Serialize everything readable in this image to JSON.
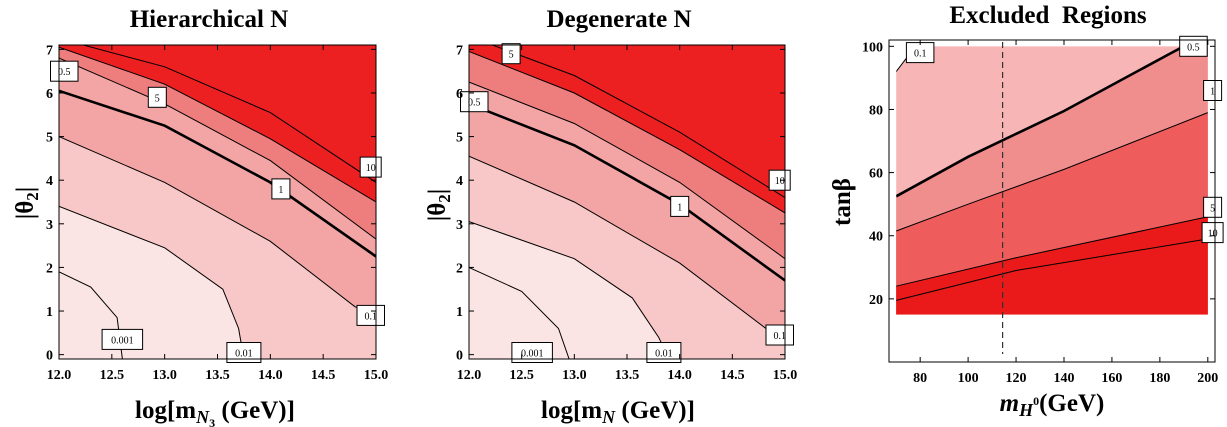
{
  "chart_data": [
    {
      "type": "contour",
      "title": "Hierarchical N",
      "xlabel": "log[m",
      "xlabel_sub": "N",
      "xlabel_subsub": "3",
      "xlabel_tail": " (GeV)]",
      "ylabel": "|θ",
      "ylabel_sub": "2",
      "ylabel_tail": "|",
      "xlim": [
        12.0,
        15.0
      ],
      "ylim": [
        -0.1,
        7.1
      ],
      "xticks": [
        "12.0",
        "12.5",
        "13.0",
        "13.5",
        "14.0",
        "14.5",
        "15.0"
      ],
      "xtick_values": [
        12.0,
        12.5,
        13.0,
        13.5,
        14.0,
        14.5,
        15.0
      ],
      "yticks": [
        "0",
        "1",
        "2",
        "3",
        "4",
        "5",
        "6",
        "7"
      ],
      "ytick_values": [
        0,
        1,
        2,
        3,
        4,
        5,
        6,
        7
      ],
      "contours": [
        {
          "level": "10",
          "points": [
            [
              12.0,
              7.25
            ],
            [
              13.0,
              6.6
            ],
            [
              14.0,
              5.55
            ],
            [
              15.0,
              3.95
            ]
          ],
          "label_at": [
            14.95,
            4.3
          ]
        },
        {
          "level": "5",
          "points": [
            [
              12.0,
              7.05
            ],
            [
              13.0,
              6.2
            ],
            [
              14.0,
              4.95
            ],
            [
              15.0,
              3.5
            ]
          ],
          "label_at": [
            12.93,
            5.9
          ]
        },
        {
          "level": "1",
          "points": [
            [
              12.0,
              6.05
            ],
            [
              13.0,
              5.25
            ],
            [
              14.0,
              3.95
            ],
            [
              15.0,
              2.25
            ]
          ],
          "label_at": [
            14.1,
            3.8
          ]
        },
        {
          "level": "0.5",
          "points": [
            [
              12.0,
              6.8
            ],
            [
              13.0,
              5.75
            ],
            [
              14.0,
              4.45
            ],
            [
              15.0,
              2.65
            ]
          ],
          "label_at": [
            12.05,
            6.5
          ]
        },
        {
          "level": "0.1",
          "points": [
            [
              12.0,
              5.0
            ],
            [
              13.0,
              3.95
            ],
            [
              14.0,
              2.6
            ],
            [
              14.8,
              1.1
            ],
            [
              15.0,
              0.9
            ]
          ],
          "label_at": [
            14.95,
            0.9
          ]
        },
        {
          "level": "0.001",
          "points": [
            [
              12.0,
              1.9
            ],
            [
              12.3,
              1.55
            ],
            [
              12.55,
              0.85
            ],
            [
              12.6,
              -0.1
            ]
          ],
          "label_at": [
            12.6,
            0.35
          ]
        },
        {
          "level": "0.01",
          "points": [
            [
              12.0,
              3.4
            ],
            [
              13.0,
              2.45
            ],
            [
              13.55,
              1.5
            ],
            [
              13.7,
              0.6
            ],
            [
              13.75,
              -0.1
            ]
          ],
          "label_at": [
            13.75,
            0.05
          ]
        }
      ]
    },
    {
      "type": "contour",
      "title": "Degenerate N",
      "xlabel": "log[m",
      "xlabel_sub": "N",
      "xlabel_tail": " (GeV)]",
      "ylabel": "|θ",
      "ylabel_sub": "2",
      "ylabel_tail": "|",
      "xlim": [
        12.0,
        15.0
      ],
      "ylim": [
        -0.1,
        7.1
      ],
      "xticks": [
        "12.0",
        "12.5",
        "13.0",
        "13.5",
        "14.0",
        "14.5",
        "15.0"
      ],
      "xtick_values": [
        12.0,
        12.5,
        13.0,
        13.5,
        14.0,
        14.5,
        15.0
      ],
      "yticks": [
        "0",
        "1",
        "2",
        "3",
        "4",
        "5",
        "6",
        "7"
      ],
      "ytick_values": [
        0,
        1,
        2,
        3,
        4,
        5,
        6,
        7
      ],
      "contours": [
        {
          "level": "10",
          "points": [
            [
              12.0,
              7.3
            ],
            [
              13.0,
              6.4
            ],
            [
              14.0,
              5.1
            ],
            [
              15.0,
              3.6
            ]
          ],
          "label_at": [
            14.95,
            4.0
          ]
        },
        {
          "level": "5",
          "points": [
            [
              12.0,
              6.95
            ],
            [
              13.0,
              6.0
            ],
            [
              14.0,
              4.7
            ],
            [
              15.0,
              3.25
            ]
          ],
          "label_at": [
            12.4,
            6.9
          ]
        },
        {
          "level": "1",
          "points": [
            [
              12.0,
              5.75
            ],
            [
              13.0,
              4.8
            ],
            [
              14.0,
              3.45
            ],
            [
              15.0,
              1.7
            ]
          ],
          "label_at": [
            14.0,
            3.4
          ]
        },
        {
          "level": "0.5",
          "points": [
            [
              12.0,
              6.25
            ],
            [
              13.0,
              5.3
            ],
            [
              14.0,
              3.95
            ],
            [
              15.0,
              2.2
            ]
          ],
          "label_at": [
            12.05,
            5.8
          ]
        },
        {
          "level": "0.1",
          "points": [
            [
              12.0,
              4.55
            ],
            [
              13.0,
              3.5
            ],
            [
              14.0,
              2.1
            ],
            [
              14.9,
              0.45
            ],
            [
              15.0,
              0.35
            ]
          ],
          "label_at": [
            14.95,
            0.45
          ]
        },
        {
          "level": "0.001",
          "points": [
            [
              12.0,
              2.0
            ],
            [
              12.5,
              1.45
            ],
            [
              12.85,
              0.6
            ],
            [
              12.95,
              -0.1
            ]
          ],
          "label_at": [
            12.6,
            0.05
          ]
        },
        {
          "level": "0.01",
          "points": [
            [
              12.0,
              3.05
            ],
            [
              13.0,
              2.2
            ],
            [
              13.55,
              1.3
            ],
            [
              13.8,
              0.4
            ],
            [
              13.9,
              -0.1
            ]
          ],
          "label_at": [
            13.85,
            0.05
          ]
        }
      ]
    },
    {
      "type": "contour",
      "title": "Excluded  Regions",
      "xlabel": "m",
      "xlabel_sub": "H",
      "xlabel_sup": "0",
      "xlabel_tail": "(GeV)",
      "ylabel": "tanβ",
      "xlim": [
        67,
        203
      ],
      "ylim": [
        0,
        102
      ],
      "xticks": [
        "80",
        "100",
        "120",
        "140",
        "160",
        "180",
        "200"
      ],
      "xtick_values": [
        80,
        100,
        120,
        140,
        160,
        180,
        200
      ],
      "yticks": [
        "20",
        "40",
        "60",
        "80",
        "100"
      ],
      "ytick_values": [
        20,
        40,
        60,
        80,
        100
      ],
      "vline": 114.4,
      "contours": [
        {
          "level": "0.1",
          "points": [
            [
              70,
              92
            ],
            [
              78,
              100
            ]
          ],
          "label_at": [
            80,
            98
          ]
        },
        {
          "level": "0.5",
          "points": [
            [
              70,
              52.5
            ],
            [
              100,
              65
            ],
            [
              140,
              79.5
            ],
            [
              185,
              98
            ],
            [
              190,
              100
            ]
          ],
          "label_at": [
            194,
            100
          ]
        },
        {
          "level": "1",
          "points": [
            [
              70,
              41.5
            ],
            [
              100,
              50
            ],
            [
              140,
              61
            ],
            [
              200,
              79
            ]
          ],
          "label_at": [
            202,
            86
          ]
        },
        {
          "level": "5",
          "points": [
            [
              70,
              24
            ],
            [
              120,
              33
            ],
            [
              200,
              46
            ]
          ],
          "label_at": [
            202,
            49
          ]
        },
        {
          "level": "10",
          "points": [
            [
              70,
              19.5
            ],
            [
              120,
              29
            ],
            [
              200,
              39
            ]
          ],
          "label_at": [
            202,
            41
          ]
        }
      ]
    }
  ]
}
